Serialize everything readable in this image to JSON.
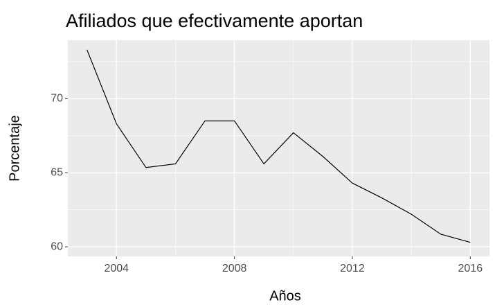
{
  "chart_data": {
    "type": "line",
    "title": "Afiliados que efectivamente aportan",
    "x_label": "Años",
    "y_label": "Porcentaje",
    "x": [
      2003,
      2004,
      2005,
      2006,
      2007,
      2008,
      2009,
      2010,
      2011,
      2012,
      2013,
      2014,
      2015,
      2016
    ],
    "series": [
      {
        "color": "#000000",
        "values": [
          73.3,
          68.3,
          65.35,
          65.6,
          68.5,
          68.5,
          65.6,
          67.7,
          66.1,
          64.3,
          63.3,
          62.2,
          60.85,
          60.3
        ]
      }
    ],
    "xlim": [
      2002.35,
      2016.65
    ],
    "ylim": [
      59.35,
      73.95
    ],
    "xticks": [
      2004,
      2008,
      2012,
      2016
    ],
    "yticks": [
      60,
      65,
      70
    ],
    "x_minor_grid": [
      2006,
      2010,
      2014
    ],
    "y_minor_grid": [
      62.5,
      67.5,
      72.5
    ],
    "grid": true
  }
}
